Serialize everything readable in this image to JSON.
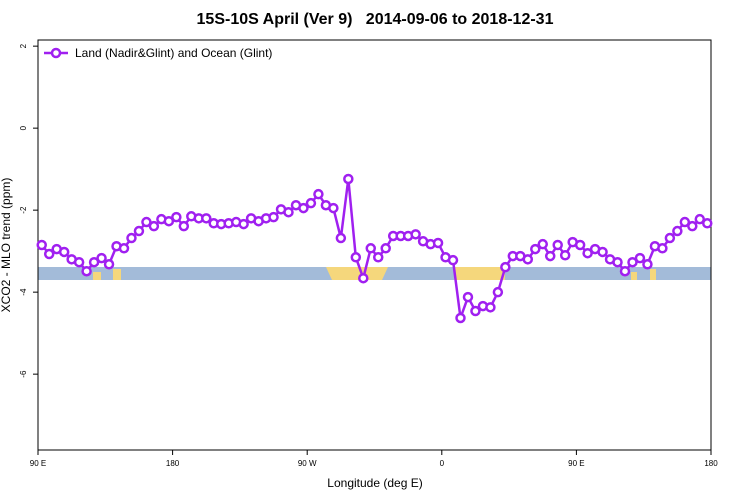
{
  "chart_data": {
    "type": "line",
    "title": "15S-10S April (Ver 9)   2014-09-06 to 2018-12-31",
    "xlabel": "Longitude (deg E)",
    "ylabel": "XCO2 - MLO trend (ppm)",
    "xlim": [
      90,
      540
    ],
    "ylim": [
      -7.85,
      2.15
    ],
    "xticks": [
      {
        "value": 90,
        "label": "90 E"
      },
      180,
      {
        "value": 270,
        "label": "90 W"
      },
      {
        "value": 360,
        "label": "0"
      },
      {
        "value": 450,
        "label": "90 E"
      },
      {
        "value": 540,
        "label": "180"
      }
    ],
    "yticks": [
      2,
      0,
      -2,
      -4,
      -6
    ],
    "legend": "top-left",
    "x": [
      92.5,
      97.5,
      102.5,
      107.5,
      112.5,
      117.5,
      122.5,
      127.5,
      132.5,
      137.5,
      142.5,
      147.5,
      152.5,
      157.5,
      162.5,
      167.5,
      172.5,
      177.5,
      182.5,
      187.5,
      192.5,
      197.5,
      202.5,
      207.5,
      212.5,
      217.5,
      222.5,
      227.5,
      232.5,
      237.5,
      242.5,
      247.5,
      252.5,
      257.5,
      262.5,
      267.5,
      272.5,
      277.5,
      282.5,
      287.5,
      292.5,
      297.5,
      302.5,
      307.5,
      312.5,
      317.5,
      322.5,
      327.5,
      332.5,
      337.5,
      342.5,
      347.5,
      352.5,
      357.5,
      362.5,
      367.5,
      372.5,
      377.5,
      382.5,
      387.5,
      392.5,
      397.5,
      402.5,
      407.5,
      412.5,
      417.5,
      422.5,
      427.5,
      432.5,
      437.5,
      442.5,
      447.5,
      452.5,
      457.5,
      462.5,
      467.5,
      472.5,
      477.5,
      482.5,
      487.5,
      492.5,
      497.5,
      502.5,
      507.5,
      512.5,
      517.5,
      522.5,
      527.5,
      532.5,
      537.5
    ],
    "series": [
      {
        "name": "Land (Nadir&Glint) and Ocean (Glint)",
        "color": "#a020f0",
        "values": [
          -2.85,
          -3.07,
          -2.95,
          -3.02,
          -3.2,
          -3.27,
          -3.49,
          -3.27,
          -3.17,
          -3.32,
          -2.88,
          -2.93,
          -2.68,
          -2.51,
          -2.29,
          -2.39,
          -2.22,
          -2.27,
          -2.17,
          -2.39,
          -2.15,
          -2.2,
          -2.2,
          -2.32,
          -2.34,
          -2.32,
          -2.29,
          -2.34,
          -2.2,
          -2.27,
          -2.2,
          -2.17,
          -1.98,
          -2.05,
          -1.88,
          -1.95,
          -1.83,
          -1.61,
          -1.88,
          -1.95,
          -2.68,
          -1.24,
          -3.15,
          -3.66,
          -2.93,
          -3.15,
          -2.93,
          -2.63,
          -2.63,
          -2.63,
          -2.59,
          -2.76,
          -2.83,
          -2.8,
          -3.15,
          -3.22,
          -4.63,
          -4.12,
          -4.46,
          -4.34,
          -4.37,
          -4.0,
          -3.39,
          -3.12,
          -3.12,
          -3.2,
          -2.95,
          -2.83,
          -3.12,
          -2.85,
          -3.1,
          -2.78,
          -2.85,
          -3.05,
          -2.95,
          -3.02,
          -3.2,
          -3.27,
          -3.49,
          -3.27,
          -3.17,
          -3.32,
          -2.88,
          -2.93,
          -2.68,
          -2.51,
          -2.29,
          -2.39,
          -2.22,
          -2.32
        ]
      }
    ]
  }
}
